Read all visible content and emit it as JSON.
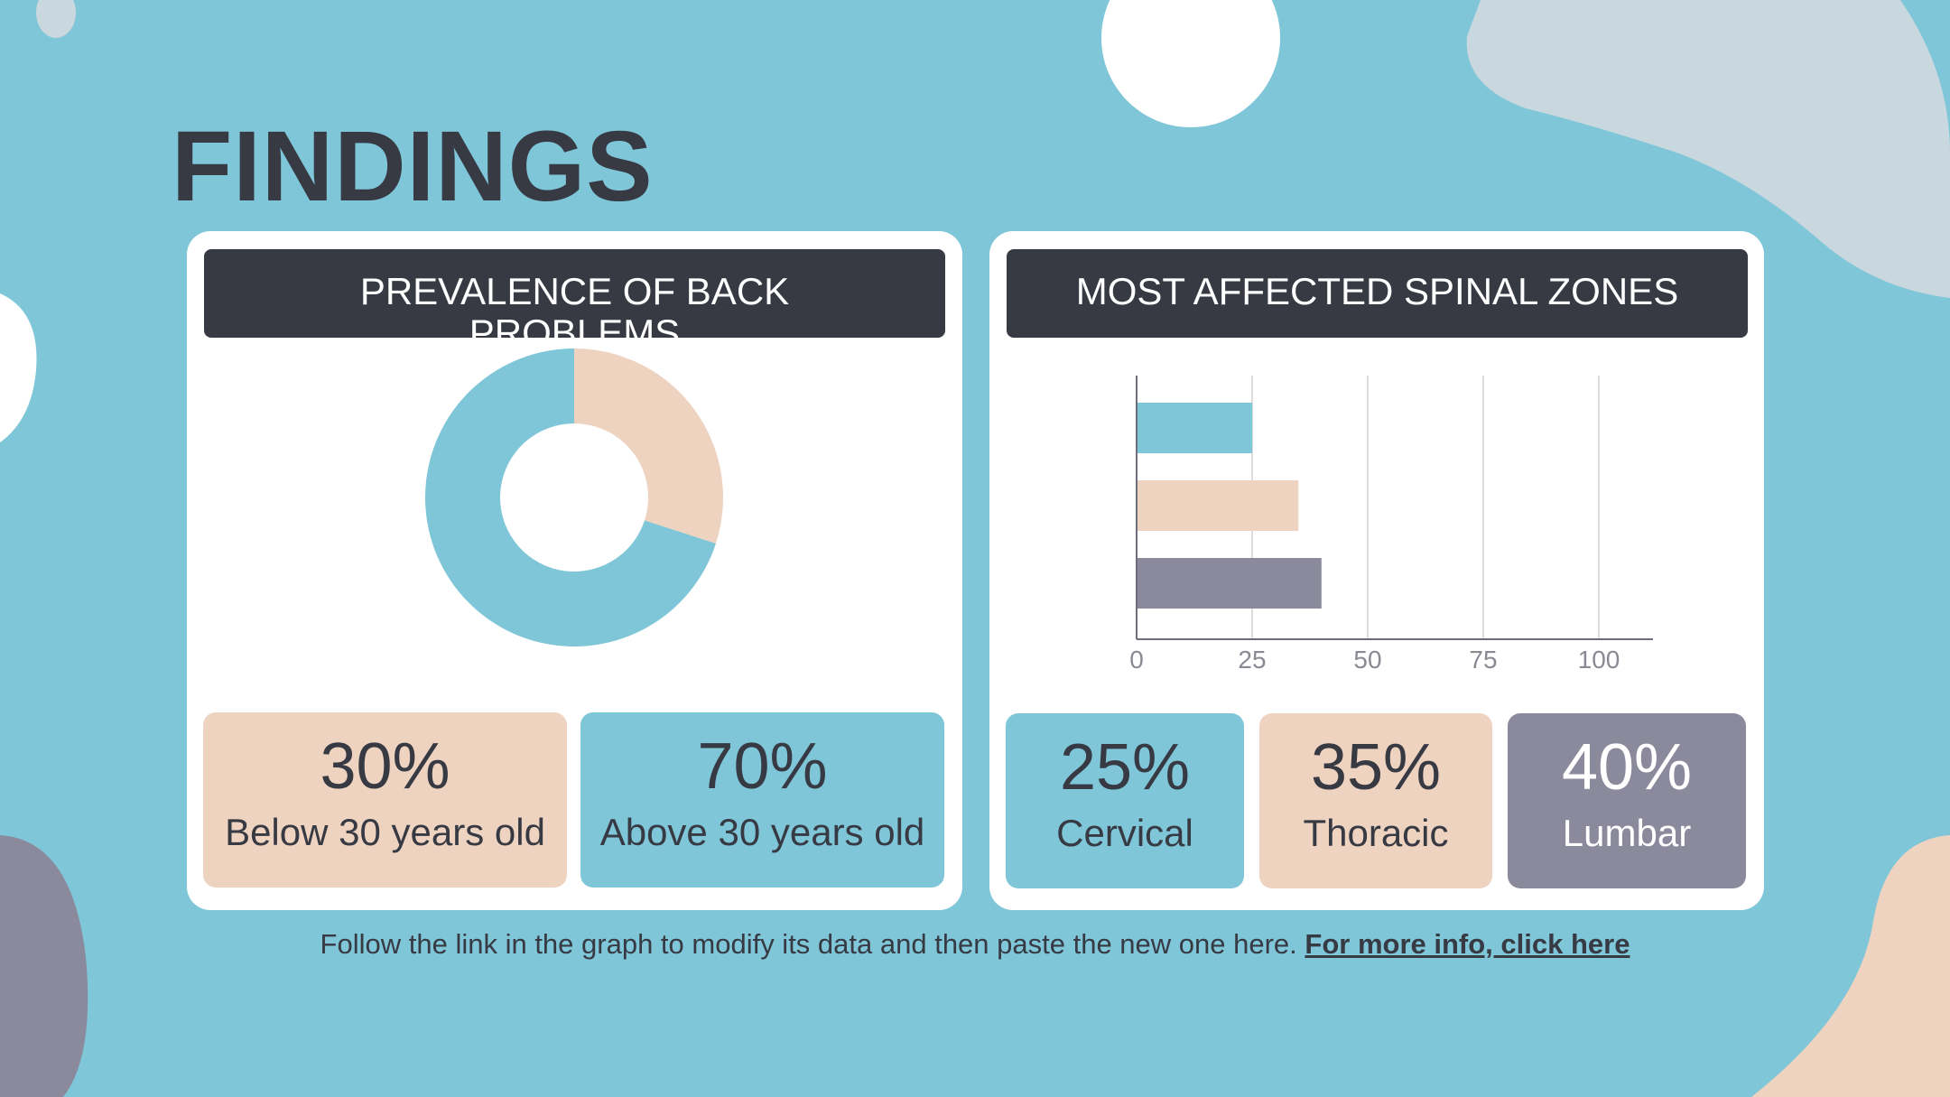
{
  "title": "FINDINGS",
  "colors": {
    "background": "#7ec6d8",
    "dark": "#373943",
    "peach": "#edd3c0",
    "blue": "#7ec6d8",
    "purple": "#8b899c",
    "grey_blob": "#c8d8de",
    "white": "#ffffff"
  },
  "left_card": {
    "header": "PREVALENCE OF BACK PROBLEMS",
    "stats": [
      {
        "value": "30%",
        "label": "Below 30 years old",
        "color": "#edd3c0"
      },
      {
        "value": "70%",
        "label": "Above 30 years old",
        "color": "#7ec6d8"
      }
    ]
  },
  "right_card": {
    "header": "MOST AFFECTED SPINAL ZONES",
    "stats": [
      {
        "value": "25%",
        "label": "Cervical",
        "color": "#7ec6d8"
      },
      {
        "value": "35%",
        "label": "Thoracic",
        "color": "#edd3c0"
      },
      {
        "value": "40%",
        "label": "Lumbar",
        "color": "#8b899c"
      }
    ]
  },
  "footer": {
    "text": "Follow the link in the graph to modify its data and then paste the new one here.",
    "link": "For more info, click here"
  },
  "chart_data": [
    {
      "type": "pie",
      "donut": true,
      "categories": [
        "Below 30 years old",
        "Above 30 years old"
      ],
      "values": [
        30,
        70
      ],
      "colors": [
        "#edd3c0",
        "#7ec6d8"
      ]
    },
    {
      "type": "bar",
      "orientation": "horizontal",
      "categories": [
        "Cervical",
        "Thoracic",
        "Lumbar"
      ],
      "values": [
        25,
        35,
        40
      ],
      "colors": [
        "#7ec6d8",
        "#edd3c0",
        "#8b899c"
      ],
      "xlim": [
        0,
        100
      ],
      "x_ticks": [
        "0",
        "25",
        "50",
        "75",
        "100"
      ],
      "grid": true
    }
  ]
}
